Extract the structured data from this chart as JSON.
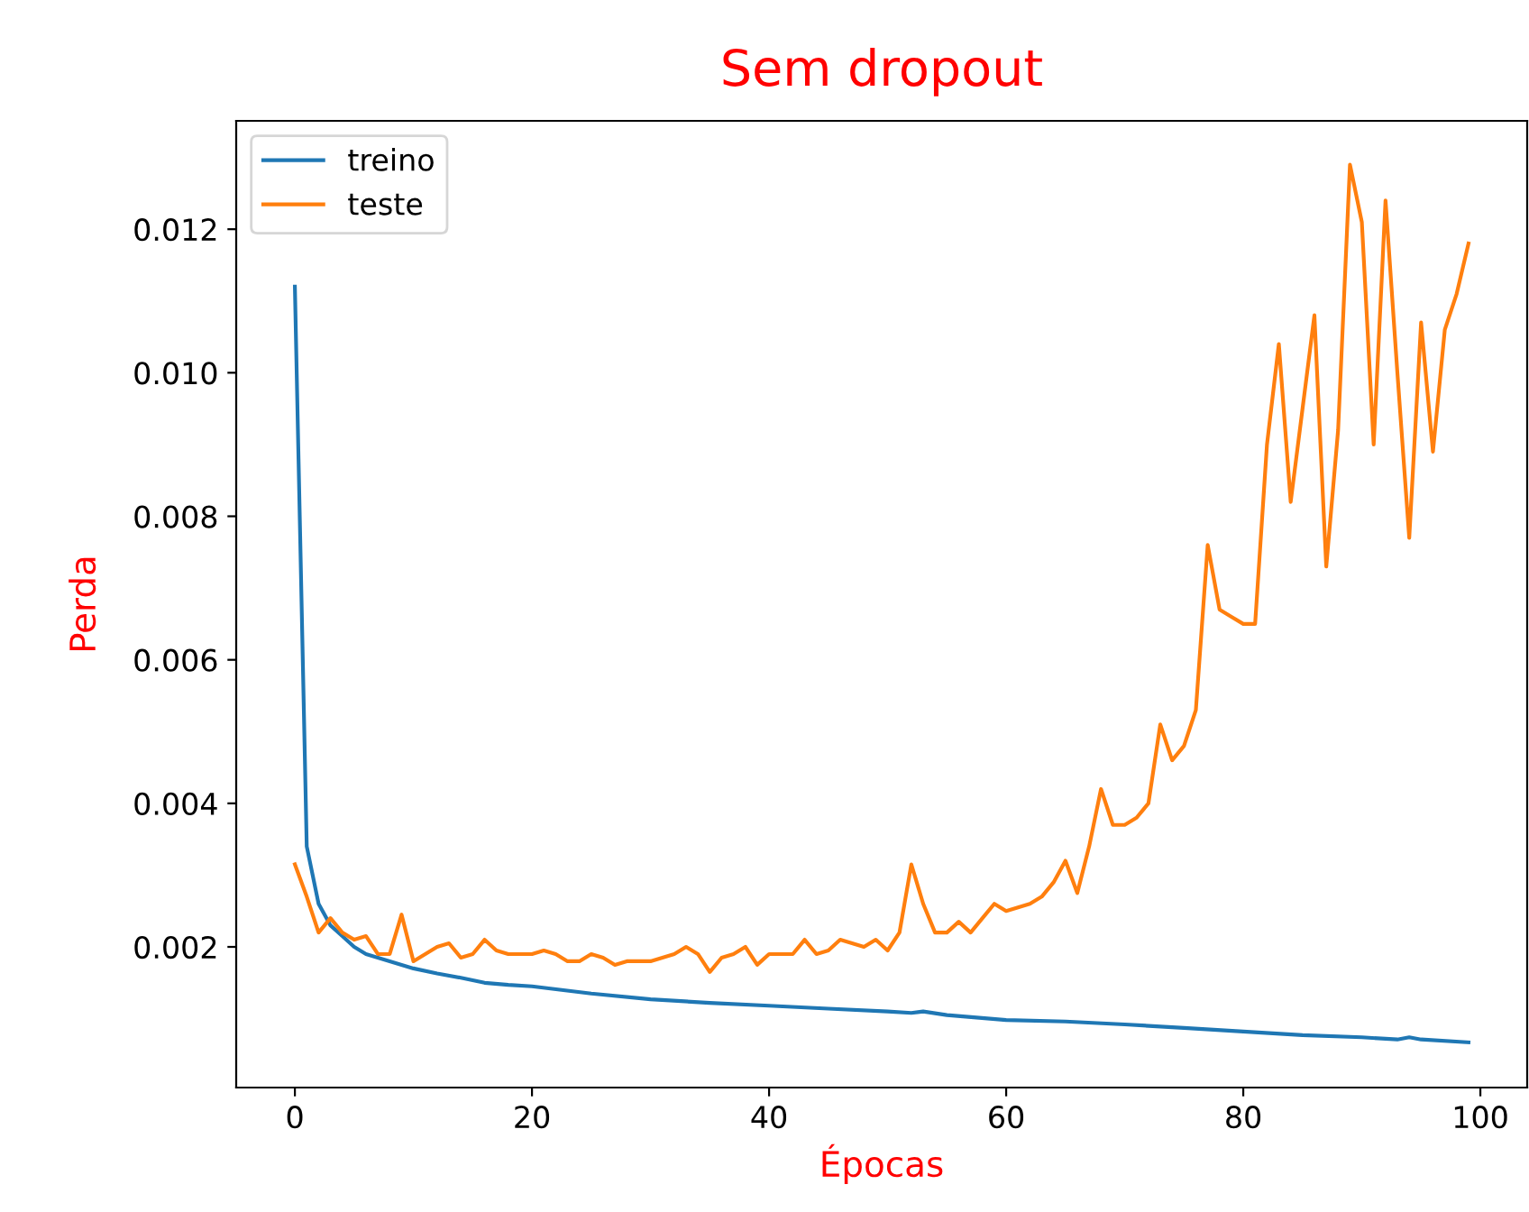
{
  "chart_data": {
    "type": "line",
    "title": "Sem dropout",
    "xlabel": "Épocas",
    "ylabel": "Perda",
    "xlim": [
      -4.95,
      103.95
    ],
    "xticks": [
      0,
      20,
      40,
      60,
      80,
      100
    ],
    "ylim": [
      4e-05,
      0.01351
    ],
    "yticks": [
      {
        "value": 0.002,
        "label": "0.002"
      },
      {
        "value": 0.004,
        "label": "0.004"
      },
      {
        "value": 0.006,
        "label": "0.006"
      },
      {
        "value": 0.008,
        "label": "0.008"
      },
      {
        "value": 0.01,
        "label": "0.010"
      },
      {
        "value": 0.012,
        "label": "0.012"
      }
    ],
    "legend": "top left",
    "grid": false,
    "series": [
      {
        "name": "treino",
        "color": "#1f77b4",
        "x": [
          0,
          1,
          2,
          3,
          4,
          5,
          6,
          7,
          8,
          9,
          10,
          12,
          14,
          16,
          18,
          20,
          25,
          30,
          35,
          40,
          45,
          50,
          52,
          53,
          55,
          60,
          65,
          70,
          75,
          80,
          85,
          90,
          93,
          94,
          95,
          99
        ],
        "values": [
          0.0112,
          0.0034,
          0.0026,
          0.0023,
          0.00215,
          0.002,
          0.0019,
          0.00185,
          0.0018,
          0.00175,
          0.0017,
          0.00163,
          0.00157,
          0.0015,
          0.00147,
          0.00145,
          0.00135,
          0.00127,
          0.00122,
          0.00118,
          0.00114,
          0.0011,
          0.00108,
          0.0011,
          0.00105,
          0.00098,
          0.00096,
          0.00092,
          0.00087,
          0.00082,
          0.00077,
          0.00074,
          0.00071,
          0.00074,
          0.00071,
          0.00067
        ]
      },
      {
        "name": "teste",
        "color": "#ff7f0e",
        "x": [
          0,
          1,
          2,
          3,
          4,
          5,
          6,
          7,
          8,
          9,
          10,
          11,
          12,
          13,
          14,
          15,
          16,
          17,
          18,
          19,
          20,
          21,
          22,
          23,
          24,
          25,
          26,
          27,
          28,
          29,
          30,
          31,
          32,
          33,
          34,
          35,
          36,
          37,
          38,
          39,
          40,
          41,
          42,
          43,
          44,
          45,
          46,
          47,
          48,
          49,
          50,
          51,
          52,
          53,
          54,
          55,
          56,
          57,
          58,
          59,
          60,
          61,
          62,
          63,
          64,
          65,
          66,
          67,
          68,
          69,
          70,
          71,
          72,
          73,
          74,
          75,
          76,
          77,
          78,
          79,
          80,
          81,
          82,
          83,
          84,
          85,
          86,
          87,
          88,
          89,
          90,
          91,
          92,
          93,
          94,
          95,
          96,
          97,
          98,
          99
        ],
        "values": [
          0.00315,
          0.0027,
          0.0022,
          0.0024,
          0.0022,
          0.0021,
          0.00215,
          0.0019,
          0.0019,
          0.00245,
          0.0018,
          0.0019,
          0.002,
          0.00205,
          0.00185,
          0.0019,
          0.0021,
          0.00195,
          0.0019,
          0.0019,
          0.0019,
          0.00195,
          0.0019,
          0.0018,
          0.0018,
          0.0019,
          0.00185,
          0.00175,
          0.0018,
          0.0018,
          0.0018,
          0.00185,
          0.0019,
          0.002,
          0.0019,
          0.00165,
          0.00185,
          0.0019,
          0.002,
          0.00175,
          0.0019,
          0.0019,
          0.0019,
          0.0021,
          0.0019,
          0.00195,
          0.0021,
          0.00205,
          0.002,
          0.0021,
          0.00195,
          0.0022,
          0.00315,
          0.0026,
          0.0022,
          0.0022,
          0.00235,
          0.0022,
          0.0024,
          0.0026,
          0.0025,
          0.00255,
          0.0026,
          0.0027,
          0.0029,
          0.0032,
          0.00275,
          0.0034,
          0.0042,
          0.0037,
          0.0037,
          0.0038,
          0.004,
          0.0051,
          0.0046,
          0.0048,
          0.0053,
          0.0076,
          0.0067,
          0.0066,
          0.0065,
          0.0065,
          0.009,
          0.0104,
          0.0082,
          0.0095,
          0.0108,
          0.0073,
          0.0092,
          0.0129,
          0.0121,
          0.009,
          0.0124,
          0.01,
          0.0077,
          0.0107,
          0.0089,
          0.0106,
          0.0111,
          0.0118
        ]
      }
    ]
  }
}
